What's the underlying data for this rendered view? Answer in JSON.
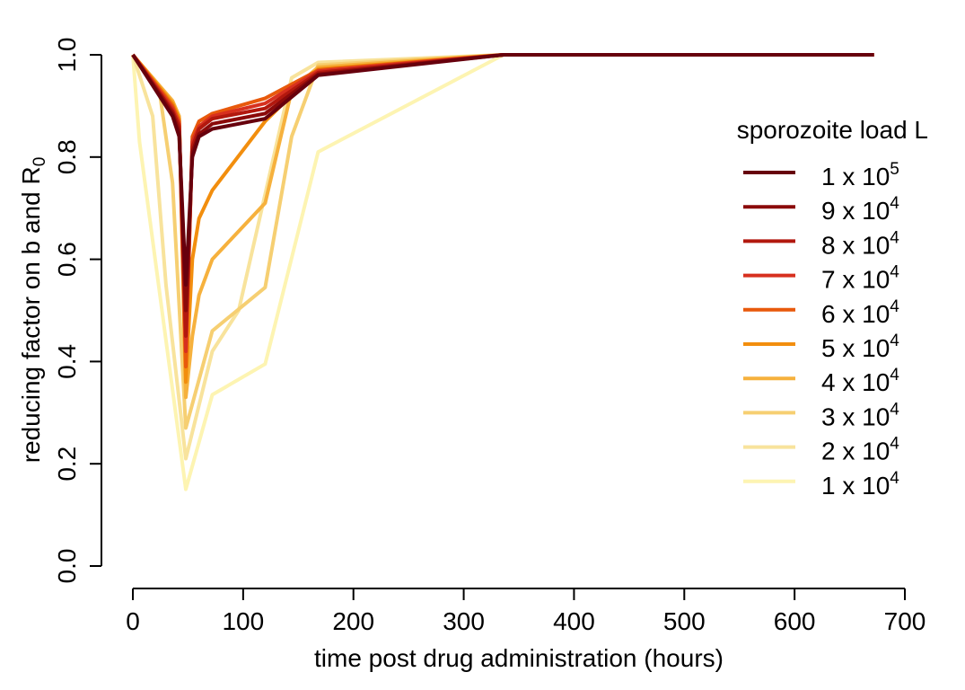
{
  "chart_data": {
    "type": "line",
    "xlabel": "time post drug administration (hours)",
    "ylabel": "reducing factor on b and R",
    "ylabel_subscript": "0",
    "xlim": [
      0,
      700
    ],
    "ylim": [
      0,
      1
    ],
    "xticks": [
      "0",
      "100",
      "200",
      "300",
      "400",
      "500",
      "600",
      "700"
    ],
    "yticks": [
      "0.0",
      "0.2",
      "0.4",
      "0.6",
      "0.8",
      "1.0"
    ],
    "grid": false,
    "legend": {
      "title": "sporozoite load L",
      "placement": "right"
    },
    "series": [
      {
        "name": "1 x 10^5",
        "base": "1 x 10",
        "exp": "5",
        "color": "#67000d",
        "points": [
          [
            0,
            1.0
          ],
          [
            36,
            0.88
          ],
          [
            42,
            0.84
          ],
          [
            48,
            0.55
          ],
          [
            54,
            0.8
          ],
          [
            60,
            0.84
          ],
          [
            72,
            0.855
          ],
          [
            120,
            0.875
          ],
          [
            168,
            0.96
          ],
          [
            336,
            1.0
          ],
          [
            672,
            1.0
          ]
        ]
      },
      {
        "name": "9 x 10^4",
        "base": "9 x 10",
        "exp": "4",
        "color": "#8b0a0a",
        "points": [
          [
            0,
            1.0
          ],
          [
            36,
            0.885
          ],
          [
            42,
            0.85
          ],
          [
            48,
            0.5
          ],
          [
            54,
            0.81
          ],
          [
            60,
            0.845
          ],
          [
            72,
            0.865
          ],
          [
            120,
            0.885
          ],
          [
            168,
            0.962
          ],
          [
            336,
            1.0
          ],
          [
            672,
            1.0
          ]
        ]
      },
      {
        "name": "8 x 10^4",
        "base": "8 x 10",
        "exp": "4",
        "color": "#b2180e",
        "points": [
          [
            0,
            1.0
          ],
          [
            36,
            0.89
          ],
          [
            42,
            0.86
          ],
          [
            48,
            0.45
          ],
          [
            54,
            0.82
          ],
          [
            60,
            0.855
          ],
          [
            72,
            0.875
          ],
          [
            120,
            0.895
          ],
          [
            168,
            0.965
          ],
          [
            336,
            1.0
          ],
          [
            672,
            1.0
          ]
        ]
      },
      {
        "name": "7 x 10^4",
        "base": "7 x 10",
        "exp": "4",
        "color": "#d7301f",
        "points": [
          [
            0,
            1.0
          ],
          [
            36,
            0.895
          ],
          [
            42,
            0.865
          ],
          [
            48,
            0.42
          ],
          [
            54,
            0.83
          ],
          [
            60,
            0.86
          ],
          [
            72,
            0.88
          ],
          [
            120,
            0.905
          ],
          [
            168,
            0.968
          ],
          [
            336,
            1.0
          ],
          [
            672,
            1.0
          ]
        ]
      },
      {
        "name": "6 x 10^4",
        "base": "6 x 10",
        "exp": "4",
        "color": "#e8590c",
        "points": [
          [
            0,
            1.0
          ],
          [
            36,
            0.9
          ],
          [
            42,
            0.87
          ],
          [
            48,
            0.39
          ],
          [
            54,
            0.84
          ],
          [
            60,
            0.87
          ],
          [
            72,
            0.885
          ],
          [
            120,
            0.915
          ],
          [
            168,
            0.97
          ],
          [
            336,
            1.0
          ],
          [
            672,
            1.0
          ]
        ]
      },
      {
        "name": "5 x 10^4",
        "base": "5 x 10",
        "exp": "4",
        "color": "#f28e0e",
        "points": [
          [
            0,
            1.0
          ],
          [
            36,
            0.905
          ],
          [
            42,
            0.875
          ],
          [
            48,
            0.36
          ],
          [
            54,
            0.6
          ],
          [
            60,
            0.68
          ],
          [
            72,
            0.735
          ],
          [
            120,
            0.87
          ],
          [
            168,
            0.972
          ],
          [
            336,
            1.0
          ],
          [
            672,
            1.0
          ]
        ]
      },
      {
        "name": "4 x 10^4",
        "base": "4 x 10",
        "exp": "4",
        "color": "#f6b13d",
        "points": [
          [
            0,
            1.0
          ],
          [
            36,
            0.91
          ],
          [
            42,
            0.88
          ],
          [
            48,
            0.33
          ],
          [
            54,
            0.45
          ],
          [
            60,
            0.53
          ],
          [
            72,
            0.6
          ],
          [
            120,
            0.71
          ],
          [
            144,
            0.93
          ],
          [
            168,
            0.976
          ],
          [
            336,
            1.0
          ],
          [
            672,
            1.0
          ]
        ]
      },
      {
        "name": "3 x 10^4",
        "base": "3 x 10",
        "exp": "4",
        "color": "#f6cf72",
        "points": [
          [
            0,
            1.0
          ],
          [
            24,
            0.93
          ],
          [
            36,
            0.75
          ],
          [
            48,
            0.27
          ],
          [
            72,
            0.46
          ],
          [
            120,
            0.545
          ],
          [
            144,
            0.84
          ],
          [
            168,
            0.98
          ],
          [
            336,
            1.0
          ],
          [
            672,
            1.0
          ]
        ]
      },
      {
        "name": "2 x 10^4",
        "base": "2 x 10",
        "exp": "4",
        "color": "#f8e39c",
        "points": [
          [
            0,
            1.0
          ],
          [
            18,
            0.88
          ],
          [
            30,
            0.55
          ],
          [
            48,
            0.21
          ],
          [
            72,
            0.42
          ],
          [
            96,
            0.5
          ],
          [
            144,
            0.955
          ],
          [
            168,
            0.985
          ],
          [
            336,
            1.0
          ],
          [
            672,
            1.0
          ]
        ]
      },
      {
        "name": "1 x 10^4",
        "base": "1 x 10",
        "exp": "4",
        "color": "#fdf4b2",
        "points": [
          [
            0,
            1.0
          ],
          [
            6,
            0.83
          ],
          [
            48,
            0.15
          ],
          [
            72,
            0.335
          ],
          [
            120,
            0.395
          ],
          [
            168,
            0.81
          ],
          [
            336,
            1.0
          ],
          [
            672,
            1.0
          ]
        ]
      }
    ]
  }
}
